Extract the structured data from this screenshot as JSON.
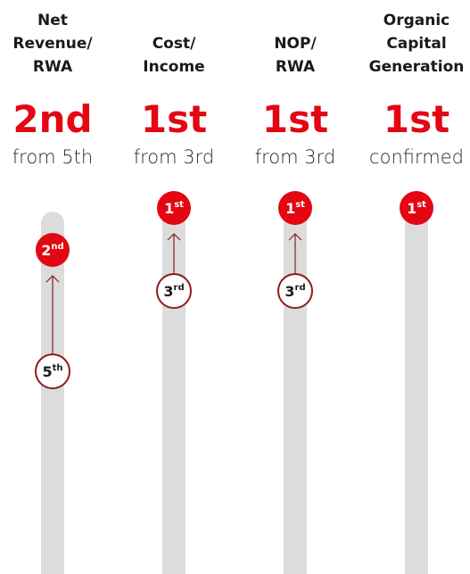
{
  "columns": [
    {
      "title_lines": [
        "Net",
        "Revenue/",
        "RWA"
      ],
      "headline": "2nd",
      "sub": "from 5th",
      "new_badge": {
        "number": "2",
        "suffix": "nd"
      },
      "old_badge": {
        "number": "5",
        "suffix": "th"
      }
    },
    {
      "title_lines": [
        "Cost/",
        "Income"
      ],
      "headline": "1st",
      "sub": "from 3rd",
      "new_badge": {
        "number": "1",
        "suffix": "st"
      },
      "old_badge": {
        "number": "3",
        "suffix": "rd"
      }
    },
    {
      "title_lines": [
        "NOP/",
        "RWA"
      ],
      "headline": "1st",
      "sub": "from 3rd",
      "new_badge": {
        "number": "1",
        "suffix": "st"
      },
      "old_badge": {
        "number": "3",
        "suffix": "rd"
      }
    },
    {
      "title_lines": [
        "Organic",
        "Capital",
        "Generation"
      ],
      "headline": "1st",
      "sub": "confirmed",
      "new_badge": {
        "number": "1",
        "suffix": "st"
      }
    }
  ]
}
